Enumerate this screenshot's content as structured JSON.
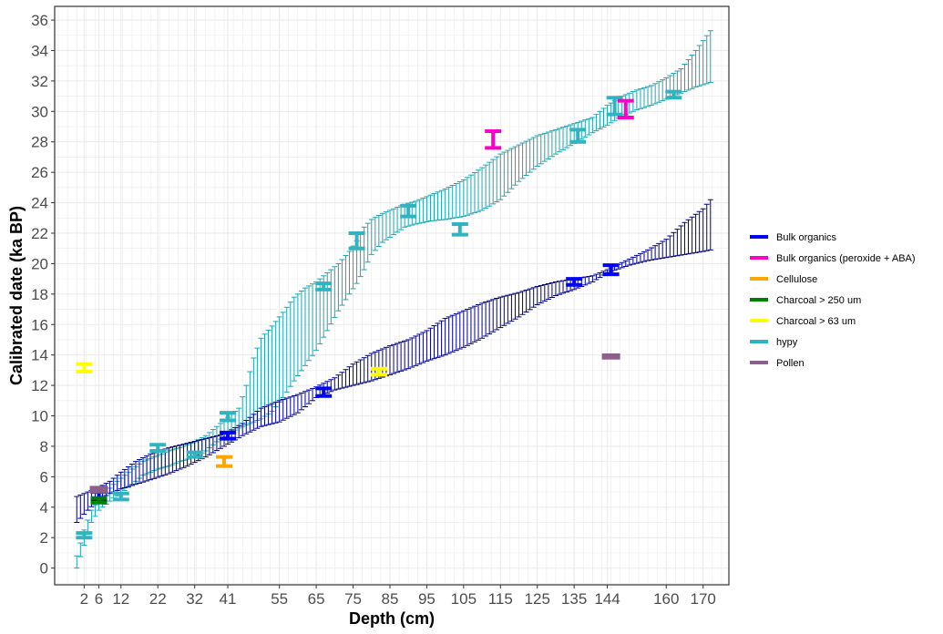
{
  "chart_data": {
    "type": "scatter",
    "xlabel": "Depth (cm)",
    "ylabel": "Calibrated date (ka BP)",
    "xlim": [
      -6,
      177
    ],
    "ylim": [
      -1.1,
      36.9
    ],
    "x_ticks": [
      2,
      6,
      12,
      22,
      32,
      41,
      55,
      65,
      75,
      85,
      95,
      105,
      115,
      125,
      135,
      144,
      160,
      170
    ],
    "y_ticks": [
      0,
      2,
      4,
      6,
      8,
      10,
      12,
      14,
      16,
      18,
      20,
      22,
      24,
      26,
      28,
      30,
      32,
      34,
      36
    ],
    "grid": true,
    "legend_position": "right",
    "legend": [
      {
        "label": "Bulk organics",
        "color": "#0000ff"
      },
      {
        "label": "Bulk organics (peroxide + ABA)",
        "color": "#ff00cc"
      },
      {
        "label": "Cellulose",
        "color": "#ffa500"
      },
      {
        "label": "Charcoal > 250 um",
        "color": "#008000"
      },
      {
        "label": "Charcoal > 63 um",
        "color": "#ffff00"
      },
      {
        "label": "hypy",
        "color": "#32b4c0"
      },
      {
        "label": "Pollen",
        "color": "#8c5f8c"
      }
    ],
    "age_models": [
      {
        "color": "#1ba6b0",
        "depth": [
          0,
          2,
          4,
          6,
          8,
          10,
          12,
          15,
          18,
          22,
          25,
          28,
          32,
          35,
          38,
          41,
          44,
          46,
          48,
          50,
          53,
          56,
          59,
          62,
          65,
          68,
          71,
          74,
          76,
          78,
          80,
          83,
          86,
          89,
          92,
          96,
          100,
          105,
          110,
          115,
          120,
          125,
          130,
          135,
          140,
          144,
          148,
          152,
          156,
          160,
          164,
          168,
          172
        ],
        "lower": [
          0,
          1.5,
          3.0,
          3.8,
          4.2,
          4.6,
          4.9,
          5.5,
          6.1,
          6.5,
          6.7,
          7.0,
          7.3,
          7.7,
          8.3,
          8.8,
          9.2,
          9.4,
          9.6,
          9.8,
          10.3,
          11.2,
          12.3,
          13.3,
          14.3,
          15.6,
          16.9,
          18.0,
          18.7,
          19.6,
          20.6,
          21.4,
          21.9,
          22.4,
          22.6,
          22.8,
          22.9,
          23.1,
          23.5,
          24.2,
          25.4,
          26.4,
          27.2,
          27.9,
          28.6,
          29.1,
          29.7,
          30.1,
          30.4,
          30.8,
          31.2,
          31.6,
          31.9
        ],
        "upper": [
          0.8,
          2.5,
          3.8,
          4.5,
          5.0,
          5.5,
          5.9,
          6.5,
          7.0,
          7.4,
          7.7,
          7.9,
          8.3,
          8.7,
          9.3,
          9.9,
          10.5,
          12.0,
          13.8,
          15.1,
          15.9,
          16.8,
          17.8,
          18.4,
          18.8,
          19.4,
          20.0,
          20.8,
          21.5,
          22.4,
          22.9,
          23.3,
          23.6,
          23.9,
          24.1,
          24.5,
          24.9,
          25.5,
          26.3,
          27.2,
          27.8,
          28.4,
          28.8,
          29.2,
          29.6,
          30.4,
          31.0,
          31.4,
          31.7,
          32.2,
          32.8,
          34.0,
          35.3
        ]
      },
      {
        "color": "#00008b",
        "depth": [
          0,
          3,
          6,
          9,
          12,
          16,
          20,
          25,
          30,
          35,
          40,
          45,
          50,
          55,
          60,
          65,
          70,
          75,
          80,
          85,
          90,
          95,
          100,
          105,
          110,
          115,
          120,
          125,
          130,
          135,
          140,
          144,
          150,
          155,
          160,
          165,
          170,
          172
        ],
        "lower": [
          3.0,
          3.8,
          4.5,
          4.9,
          5.2,
          5.5,
          5.8,
          6.2,
          6.7,
          7.3,
          8.0,
          8.7,
          9.3,
          9.6,
          10.2,
          11.2,
          11.7,
          12.0,
          12.3,
          12.7,
          13.1,
          13.6,
          14.0,
          14.5,
          15.1,
          15.8,
          16.5,
          17.3,
          17.9,
          18.3,
          18.8,
          19.4,
          19.9,
          20.2,
          20.4,
          20.6,
          20.8,
          20.9
        ],
        "upper": [
          4.7,
          5.0,
          5.3,
          5.7,
          6.3,
          7.0,
          7.5,
          7.9,
          8.2,
          8.5,
          8.8,
          9.5,
          10.5,
          11.0,
          11.4,
          11.9,
          12.5,
          13.4,
          14.1,
          14.6,
          15.0,
          15.6,
          16.4,
          16.9,
          17.4,
          17.8,
          18.1,
          18.5,
          18.8,
          19.0,
          19.2,
          19.6,
          20.3,
          20.9,
          21.6,
          22.7,
          23.6,
          24.2
        ]
      }
    ],
    "dated_samples": [
      {
        "material": "hypy",
        "depth": 2,
        "low": 2.0,
        "high": 2.3,
        "color": "#32b4c0"
      },
      {
        "material": "Charcoal > 63 um",
        "depth": 2,
        "low": 12.9,
        "high": 13.4,
        "color": "#ffff00"
      },
      {
        "material": "Bulk organics",
        "depth": 6,
        "low": 4.5,
        "high": 5.0,
        "color": "#0000ff"
      },
      {
        "material": "Charcoal > 250 um",
        "depth": 6,
        "low": 4.3,
        "high": 4.6,
        "color": "#008000"
      },
      {
        "material": "Pollen",
        "depth": 6,
        "low": 4.9,
        "high": 5.4,
        "color": "#8c5f8c"
      },
      {
        "material": "hypy",
        "depth": 12,
        "low": 4.5,
        "high": 4.9,
        "color": "#32b4c0"
      },
      {
        "material": "hypy",
        "depth": 22,
        "low": 7.7,
        "high": 8.1,
        "color": "#32b4c0"
      },
      {
        "material": "hypy",
        "depth": 32,
        "low": 7.3,
        "high": 7.6,
        "color": "#32b4c0"
      },
      {
        "material": "Cellulose",
        "depth": 40,
        "low": 6.7,
        "high": 7.3,
        "color": "#ffa500"
      },
      {
        "material": "Bulk organics",
        "depth": 41,
        "low": 8.5,
        "high": 8.9,
        "color": "#0000ff"
      },
      {
        "material": "hypy",
        "depth": 41,
        "low": 9.7,
        "high": 10.2,
        "color": "#32b4c0"
      },
      {
        "material": "hypy",
        "depth": 67,
        "low": 18.3,
        "high": 18.7,
        "color": "#32b4c0"
      },
      {
        "material": "Bulk organics",
        "depth": 67,
        "low": 11.3,
        "high": 11.8,
        "color": "#0000ff"
      },
      {
        "material": "hypy",
        "depth": 76,
        "low": 21.0,
        "high": 22.0,
        "color": "#32b4c0"
      },
      {
        "material": "Charcoal > 63 um",
        "depth": 82,
        "low": 12.7,
        "high": 13.1,
        "color": "#ffff00"
      },
      {
        "material": "hypy",
        "depth": 90,
        "low": 23.1,
        "high": 23.8,
        "color": "#32b4c0"
      },
      {
        "material": "hypy",
        "depth": 104,
        "low": 21.9,
        "high": 22.6,
        "color": "#32b4c0"
      },
      {
        "material": "Bulk organics (peroxide + ABA)",
        "depth": 113,
        "low": 27.6,
        "high": 28.7,
        "color": "#ff00cc"
      },
      {
        "material": "Bulk organics",
        "depth": 135,
        "low": 18.6,
        "high": 19.0,
        "color": "#0000ff"
      },
      {
        "material": "hypy",
        "depth": 136,
        "low": 28.0,
        "high": 28.8,
        "color": "#32b4c0"
      },
      {
        "material": "Bulk organics",
        "depth": 145,
        "low": 19.3,
        "high": 19.9,
        "color": "#0000ff"
      },
      {
        "material": "Pollen",
        "depth": 145,
        "low": 13.7,
        "high": 14.1,
        "color": "#8c5f8c"
      },
      {
        "material": "hypy",
        "depth": 146,
        "low": 29.8,
        "high": 30.9,
        "color": "#32b4c0"
      },
      {
        "material": "Bulk organics (peroxide + ABA)",
        "depth": 149,
        "low": 29.6,
        "high": 30.7,
        "color": "#ff00cc"
      },
      {
        "material": "hypy",
        "depth": 162,
        "low": 30.9,
        "high": 31.3,
        "color": "#32b4c0"
      }
    ]
  }
}
